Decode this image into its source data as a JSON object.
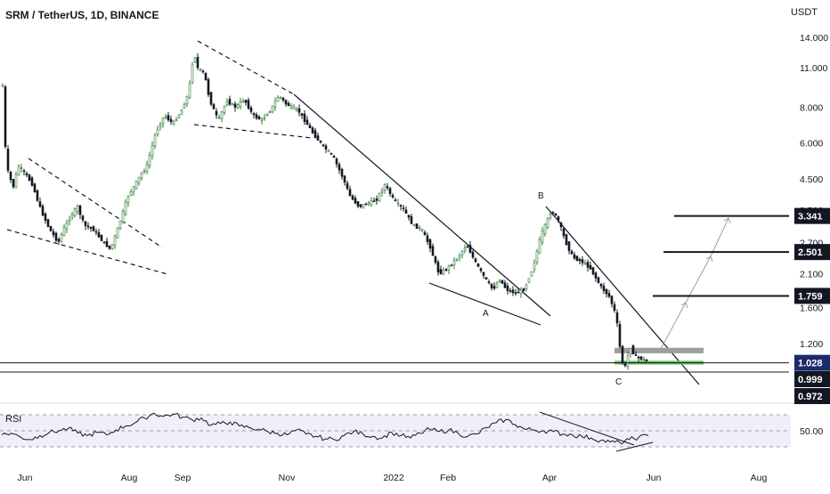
{
  "chart_data": [
    {
      "type": "candlestick",
      "title": "SRM / TetherUS, 1D, BINANCE",
      "currency": "USDT",
      "y_scale": "log",
      "y_ticks": [
        "14.000",
        "11.000",
        "8.000",
        "6.000",
        "4.500",
        "3.500",
        "2.700",
        "2.100",
        "1.600",
        "1.200"
      ],
      "x_ticks": [
        "Jun",
        "Aug",
        "Sep",
        "Nov",
        "2022",
        "Feb",
        "Apr",
        "Jun",
        "Aug"
      ],
      "price_path": [
        [
          "2021-05-19",
          9.5
        ],
        [
          "2021-05-21",
          5.0
        ],
        [
          "2021-05-25",
          4.2
        ],
        [
          "2021-05-28",
          5.0
        ],
        [
          "2021-06-01",
          4.7
        ],
        [
          "2021-06-05",
          4.3
        ],
        [
          "2021-06-10",
          3.5
        ],
        [
          "2021-06-15",
          3.0
        ],
        [
          "2021-06-20",
          2.7
        ],
        [
          "2021-06-23",
          3.0
        ],
        [
          "2021-06-28",
          3.4
        ],
        [
          "2021-07-01",
          3.6
        ],
        [
          "2021-07-05",
          3.1
        ],
        [
          "2021-07-10",
          3.0
        ],
        [
          "2021-07-15",
          2.75
        ],
        [
          "2021-07-20",
          2.55
        ],
        [
          "2021-07-24",
          3.0
        ],
        [
          "2021-07-30",
          3.9
        ],
        [
          "2021-08-05",
          4.5
        ],
        [
          "2021-08-10",
          5.0
        ],
        [
          "2021-08-15",
          6.5
        ],
        [
          "2021-08-20",
          7.5
        ],
        [
          "2021-08-25",
          7.0
        ],
        [
          "2021-08-30",
          7.8
        ],
        [
          "2021-09-03",
          9.0
        ],
        [
          "2021-09-06",
          12.5
        ],
        [
          "2021-09-08",
          11.0
        ],
        [
          "2021-09-12",
          10.5
        ],
        [
          "2021-09-15",
          8.5
        ],
        [
          "2021-09-20",
          7.2
        ],
        [
          "2021-09-25",
          8.4
        ],
        [
          "2021-09-30",
          8.0
        ],
        [
          "2021-10-05",
          8.5
        ],
        [
          "2021-10-10",
          7.5
        ],
        [
          "2021-10-15",
          7.2
        ],
        [
          "2021-10-20",
          7.8
        ],
        [
          "2021-10-25",
          8.8
        ],
        [
          "2021-10-29",
          8.2
        ],
        [
          "2021-11-05",
          7.8
        ],
        [
          "2021-11-10",
          7.0
        ],
        [
          "2021-11-15",
          6.3
        ],
        [
          "2021-11-20",
          5.8
        ],
        [
          "2021-11-25",
          5.4
        ],
        [
          "2021-12-01",
          4.5
        ],
        [
          "2021-12-05",
          3.9
        ],
        [
          "2021-12-10",
          3.6
        ],
        [
          "2021-12-15",
          3.7
        ],
        [
          "2021-12-20",
          3.8
        ],
        [
          "2021-12-25",
          4.3
        ],
        [
          "2021-12-30",
          3.8
        ],
        [
          "2022-01-05",
          3.5
        ],
        [
          "2022-01-10",
          3.1
        ],
        [
          "2022-01-15",
          3.0
        ],
        [
          "2022-01-20",
          2.6
        ],
        [
          "2022-01-25",
          2.1
        ],
        [
          "2022-01-30",
          2.2
        ],
        [
          "2022-02-05",
          2.4
        ],
        [
          "2022-02-10",
          2.65
        ],
        [
          "2022-02-15",
          2.3
        ],
        [
          "2022-02-20",
          2.05
        ],
        [
          "2022-02-25",
          1.85
        ],
        [
          "2022-03-01",
          2.0
        ],
        [
          "2022-03-05",
          1.85
        ],
        [
          "2022-03-10",
          1.8
        ],
        [
          "2022-03-15",
          1.85
        ],
        [
          "2022-03-20",
          2.2
        ],
        [
          "2022-03-25",
          2.9
        ],
        [
          "2022-03-31",
          3.5
        ],
        [
          "2022-04-04",
          3.2
        ],
        [
          "2022-04-08",
          2.7
        ],
        [
          "2022-04-12",
          2.4
        ],
        [
          "2022-04-18",
          2.3
        ],
        [
          "2022-04-22",
          2.2
        ],
        [
          "2022-04-28",
          1.9
        ],
        [
          "2022-05-03",
          1.75
        ],
        [
          "2022-05-07",
          1.5
        ],
        [
          "2022-05-10",
          1.05
        ],
        [
          "2022-05-12",
          0.99
        ],
        [
          "2022-05-15",
          1.17
        ],
        [
          "2022-05-18",
          1.08
        ],
        [
          "2022-05-22",
          1.06
        ],
        [
          "2022-05-26",
          1.03
        ]
      ],
      "overlays": {
        "horizontal_lines": [
          {
            "value": 3.341,
            "label": "3.341"
          },
          {
            "value": 2.501,
            "label": "2.501"
          },
          {
            "value": 1.759,
            "label": "1.759"
          }
        ],
        "current_price": {
          "value": 1.028,
          "label": "1.028",
          "color": "#131722"
        },
        "extra_price_labels": [
          {
            "value": 0.999,
            "label": "0.999"
          },
          {
            "value": 0.972,
            "label": "0.972"
          }
        ],
        "zones": [
          {
            "low": 1.11,
            "high": 1.16,
            "color": "#9e9e9e"
          },
          {
            "low": 1.015,
            "high": 1.045,
            "color": "#66bb6a"
          }
        ],
        "wave_labels": [
          "A",
          "B",
          "C"
        ]
      }
    },
    {
      "type": "line",
      "title": "RSI",
      "y_ticks": [
        "50.00"
      ],
      "series": [
        {
          "values": [
            45,
            47,
            42,
            39,
            44,
            48,
            50,
            53,
            47,
            44,
            48,
            45,
            51,
            56,
            60,
            66,
            72,
            68,
            71,
            67,
            64,
            66,
            57,
            59,
            61,
            56,
            54,
            52,
            49,
            47,
            45,
            51,
            46,
            43,
            40,
            39,
            44,
            49,
            46,
            43,
            41,
            48,
            44,
            41,
            47,
            52,
            49,
            51,
            47,
            43,
            46,
            54,
            60,
            64,
            58,
            52,
            51,
            50,
            49,
            46,
            45,
            43,
            41,
            38,
            36,
            35,
            39,
            42,
            44
          ]
        }
      ]
    }
  ]
}
